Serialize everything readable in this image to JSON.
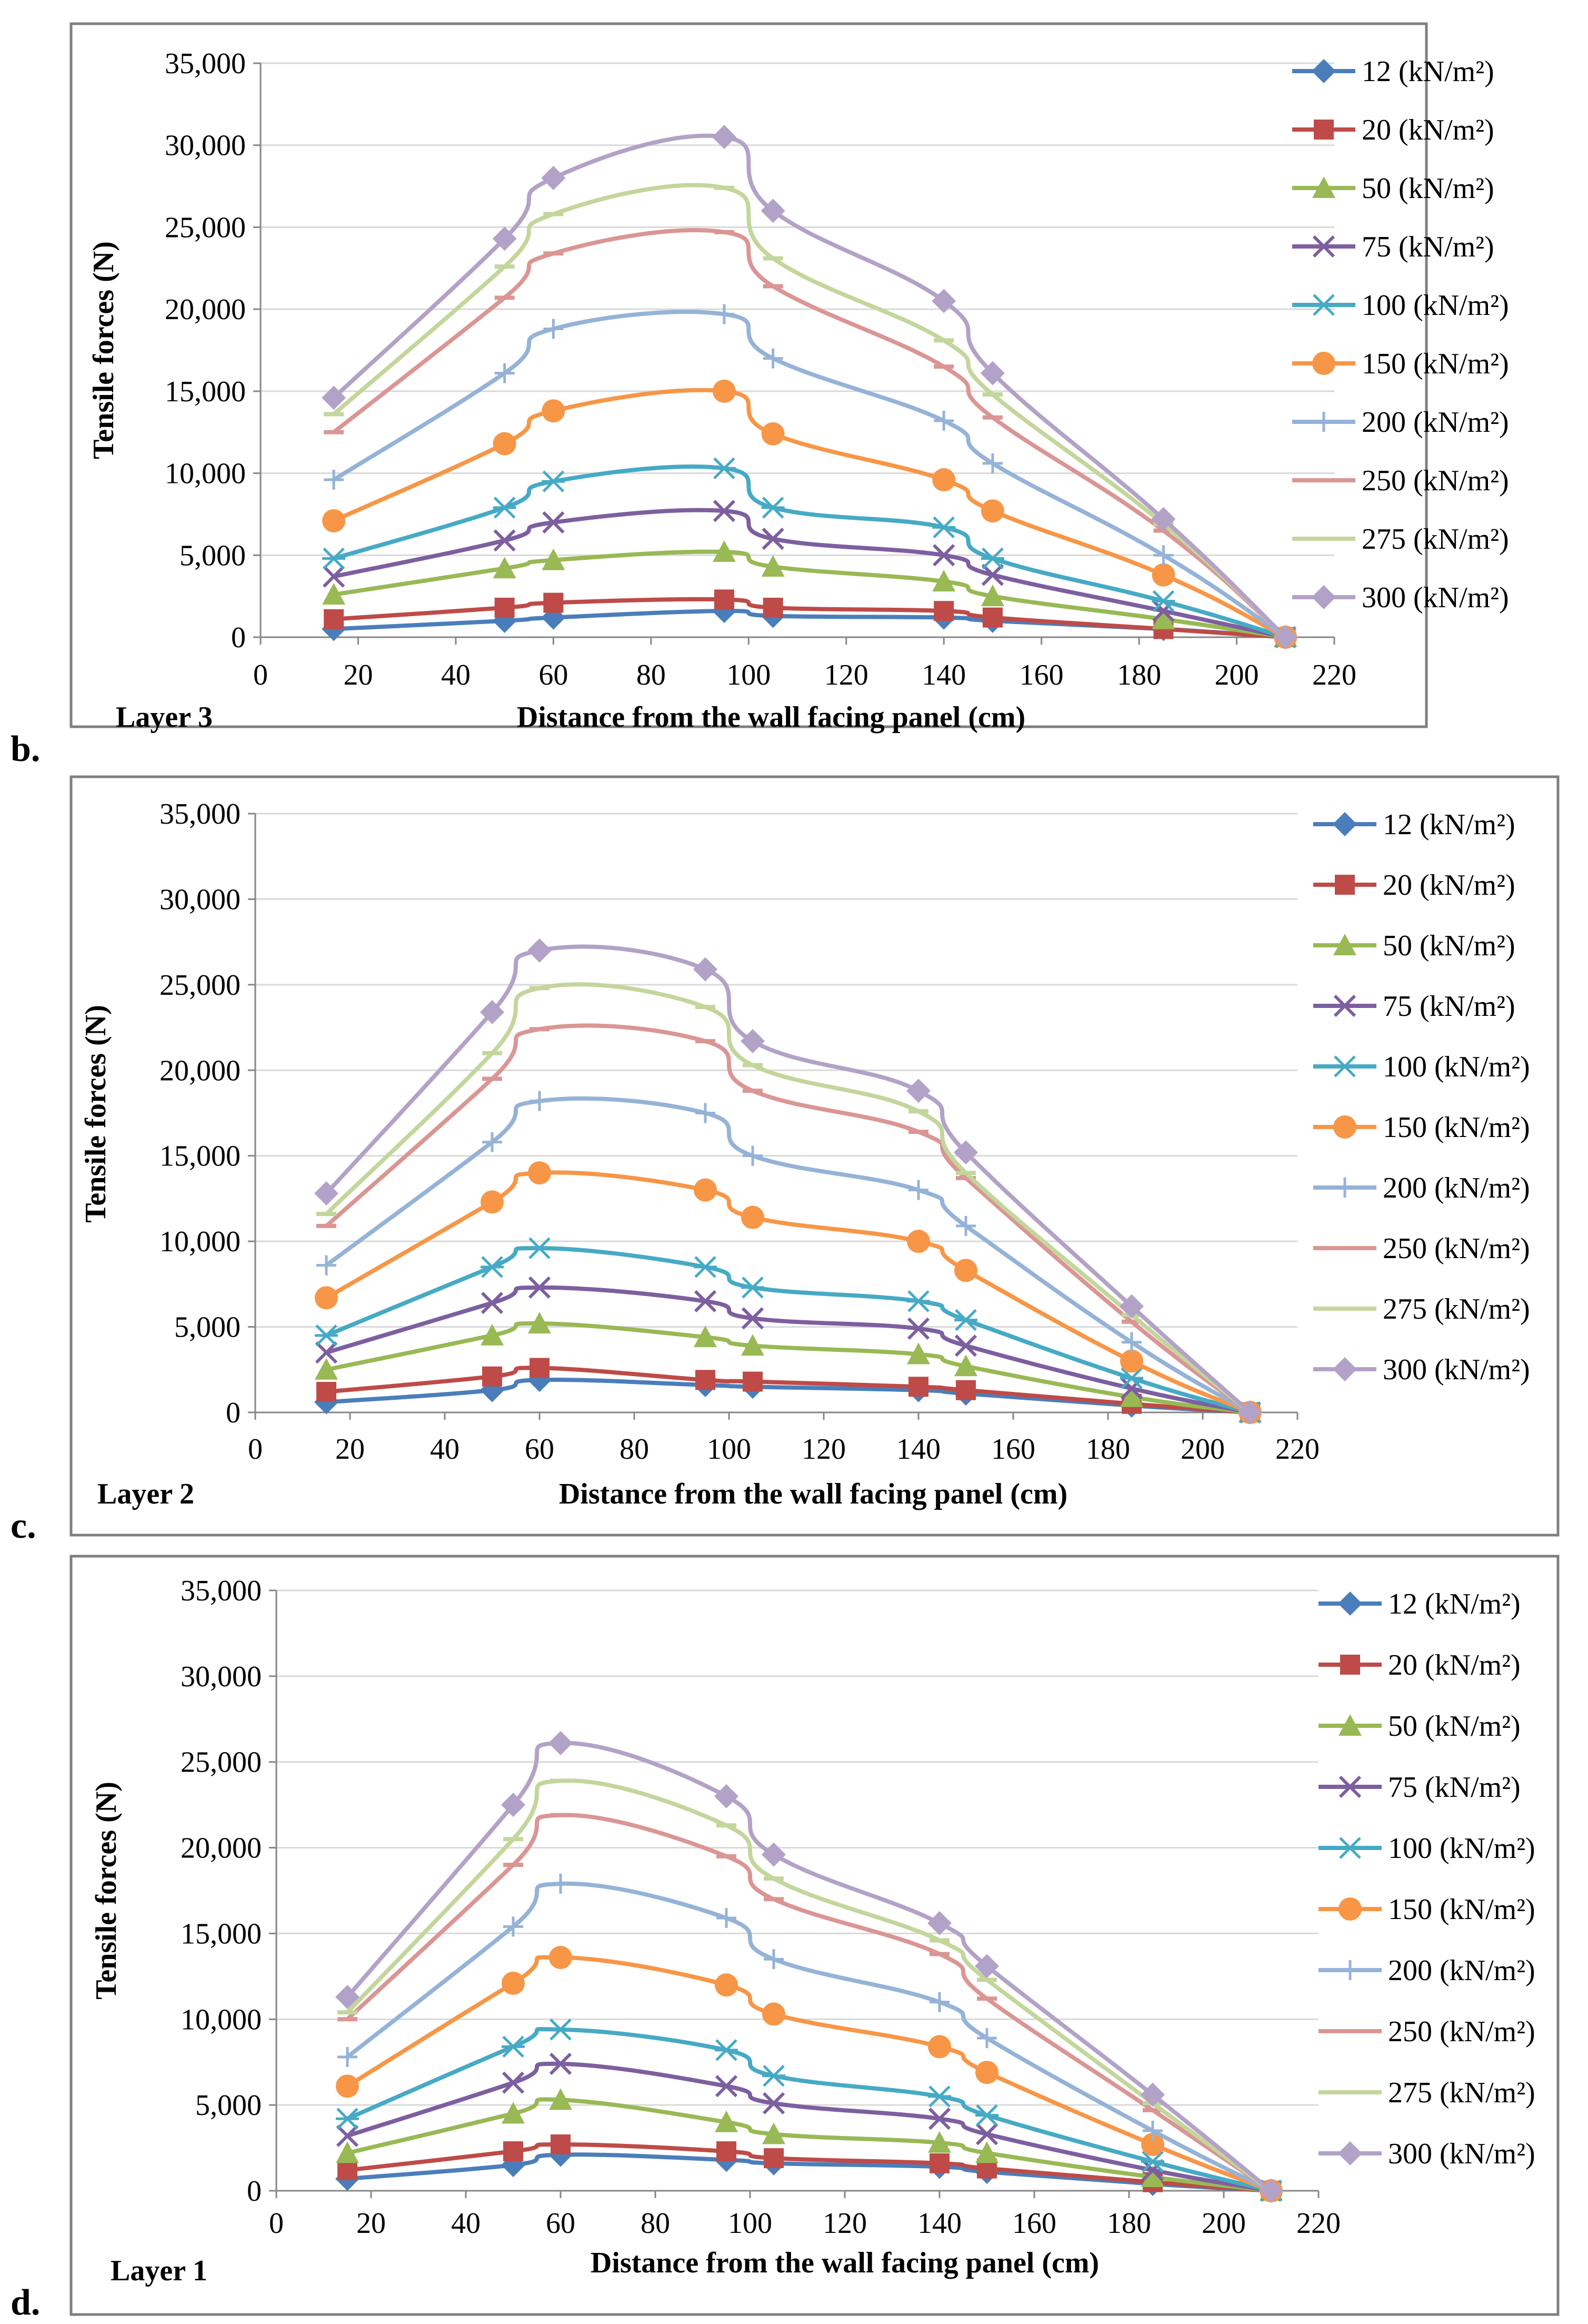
{
  "colors": {
    "12 (kN/m²)": "#4a7ebb",
    "20 (kN/m²)": "#be4b48",
    "50 (kN/m²)": "#98b954",
    "75 (kN/m²)": "#7d5fa0",
    "100 (kN/m²)": "#46aac5",
    "150 (kN/m²)": "#f79646",
    "200 (kN/m²)": "#95b3d7",
    "250 (kN/m²)": "#da9694",
    "275 (kN/m²)": "#c3d69b",
    "300 (kN/m²)": "#b3a2c7"
  },
  "markers": {
    "12 (kN/m²)": "diamond",
    "20 (kN/m²)": "square",
    "50 (kN/m²)": "triangle",
    "75 (kN/m²)": "x",
    "100 (kN/m²)": "star",
    "150 (kN/m²)": "circle",
    "200 (kN/m²)": "plus",
    "250 (kN/m²)": "dash",
    "275 (kN/m²)": "dash",
    "300 (kN/m²)": "diamond"
  },
  "chart_data": [
    {
      "type": "line",
      "panel_letter": "b.",
      "layer_label": "Layer 3",
      "xlabel": "Distance from the wall facing panel (cm)",
      "ylabel": "Tensile forces (N)",
      "xlim": [
        0,
        220
      ],
      "ylim": [
        0,
        35000
      ],
      "x_ticks": [
        "0",
        "20",
        "40",
        "60",
        "80",
        "100",
        "120",
        "140",
        "160",
        "180",
        "200",
        "220"
      ],
      "y_ticks": [
        "0",
        "5,000",
        "10,000",
        "15,000",
        "20,000",
        "25,000",
        "30,000",
        "35,000"
      ],
      "x": [
        15,
        50,
        60,
        95,
        105,
        140,
        150,
        185,
        210
      ],
      "series": [
        {
          "name": "12 (kN/m²)",
          "values": [
            500,
            1000,
            1200,
            1600,
            1300,
            1200,
            1000,
            500,
            0
          ]
        },
        {
          "name": "20 (kN/m²)",
          "values": [
            1100,
            1800,
            2100,
            2300,
            1800,
            1600,
            1200,
            500,
            0
          ]
        },
        {
          "name": "50 (kN/m²)",
          "values": [
            2600,
            4200,
            4700,
            5200,
            4300,
            3400,
            2500,
            1100,
            0
          ]
        },
        {
          "name": "75 (kN/m²)",
          "values": [
            3700,
            5900,
            7000,
            7700,
            6000,
            5000,
            3800,
            1600,
            0
          ]
        },
        {
          "name": "100 (kN/m²)",
          "values": [
            4800,
            7900,
            9500,
            10300,
            7900,
            6700,
            4800,
            2200,
            0
          ]
        },
        {
          "name": "150 (kN/m²)",
          "values": [
            7100,
            11800,
            13800,
            15000,
            12400,
            9600,
            7700,
            3800,
            0
          ]
        },
        {
          "name": "200 (kN/m²)",
          "values": [
            9600,
            16100,
            18800,
            19700,
            17000,
            13200,
            10600,
            5000,
            0
          ]
        },
        {
          "name": "250 (kN/m²)",
          "values": [
            12500,
            20700,
            23400,
            24700,
            21400,
            16500,
            13400,
            6500,
            0
          ]
        },
        {
          "name": "275 (kN/m²)",
          "values": [
            13600,
            22600,
            25800,
            27400,
            23100,
            18100,
            14800,
            6900,
            0
          ]
        },
        {
          "name": "300 (kN/m²)",
          "values": [
            14600,
            24300,
            28000,
            30500,
            26000,
            20500,
            16100,
            7200,
            0
          ]
        }
      ]
    },
    {
      "type": "line",
      "panel_letter": "c.",
      "layer_label": "Layer 2",
      "xlabel": "Distance from the wall facing panel (cm)",
      "ylabel": "Tensile forces (N)",
      "xlim": [
        0,
        220
      ],
      "ylim": [
        0,
        35000
      ],
      "x_ticks": [
        "0",
        "20",
        "40",
        "60",
        "80",
        "100",
        "120",
        "140",
        "160",
        "180",
        "200",
        "220"
      ],
      "y_ticks": [
        "0",
        "5,000",
        "10,000",
        "15,000",
        "20,000",
        "25,000",
        "30,000",
        "35,000"
      ],
      "x": [
        15,
        50,
        60,
        95,
        105,
        140,
        150,
        185,
        210
      ],
      "series": [
        {
          "name": "12 (kN/m²)",
          "values": [
            600,
            1300,
            1900,
            1600,
            1500,
            1300,
            1100,
            400,
            0
          ]
        },
        {
          "name": "20 (kN/m²)",
          "values": [
            1200,
            2100,
            2600,
            1900,
            1800,
            1500,
            1300,
            500,
            0
          ]
        },
        {
          "name": "50 (kN/m²)",
          "values": [
            2500,
            4500,
            5200,
            4400,
            3900,
            3400,
            2700,
            900,
            0
          ]
        },
        {
          "name": "75 (kN/m²)",
          "values": [
            3500,
            6400,
            7300,
            6500,
            5500,
            4900,
            3900,
            1400,
            0
          ]
        },
        {
          "name": "100 (kN/m²)",
          "values": [
            4500,
            8500,
            9600,
            8500,
            7300,
            6500,
            5400,
            2000,
            0
          ]
        },
        {
          "name": "150 (kN/m²)",
          "values": [
            6700,
            12300,
            14000,
            13000,
            11400,
            10000,
            8300,
            3000,
            0
          ]
        },
        {
          "name": "200 (kN/m²)",
          "values": [
            8600,
            15800,
            18200,
            17500,
            15000,
            13000,
            10900,
            4100,
            0
          ]
        },
        {
          "name": "250 (kN/m²)",
          "values": [
            10900,
            19500,
            22400,
            21700,
            18800,
            16400,
            13700,
            5300,
            0
          ]
        },
        {
          "name": "275 (kN/m²)",
          "values": [
            11600,
            21000,
            24800,
            23700,
            20300,
            17600,
            14000,
            5700,
            0
          ]
        },
        {
          "name": "300 (kN/m²)",
          "values": [
            12800,
            23400,
            27000,
            25900,
            21700,
            18800,
            15200,
            6200,
            0
          ]
        }
      ]
    },
    {
      "type": "line",
      "panel_letter": "d.",
      "layer_label": "Layer 1",
      "xlabel": "Distance from the wall facing panel (cm)",
      "ylabel": "Tensile forces (N)",
      "xlim": [
        0,
        220
      ],
      "ylim": [
        0,
        35000
      ],
      "x_ticks": [
        "0",
        "20",
        "40",
        "60",
        "80",
        "100",
        "120",
        "140",
        "160",
        "180",
        "200",
        "220"
      ],
      "y_ticks": [
        "0",
        "5,000",
        "10,000",
        "15,000",
        "20,000",
        "25,000",
        "30,000",
        "35,000"
      ],
      "x": [
        15,
        50,
        60,
        95,
        105,
        140,
        150,
        185,
        210
      ],
      "series": [
        {
          "name": "12 (kN/m²)",
          "values": [
            700,
            1500,
            2100,
            1800,
            1600,
            1400,
            1100,
            400,
            0
          ]
        },
        {
          "name": "20 (kN/m²)",
          "values": [
            1200,
            2300,
            2700,
            2300,
            1900,
            1600,
            1300,
            500,
            0
          ]
        },
        {
          "name": "50 (kN/m²)",
          "values": [
            2200,
            4500,
            5300,
            4000,
            3300,
            2800,
            2200,
            800,
            0
          ]
        },
        {
          "name": "75 (kN/m²)",
          "values": [
            3200,
            6300,
            7400,
            6100,
            5100,
            4200,
            3300,
            1200,
            0
          ]
        },
        {
          "name": "100 (kN/m²)",
          "values": [
            4200,
            8400,
            9400,
            8200,
            6700,
            5500,
            4400,
            1700,
            0
          ]
        },
        {
          "name": "150 (kN/m²)",
          "values": [
            6100,
            12100,
            13600,
            12000,
            10300,
            8400,
            6900,
            2700,
            0
          ]
        },
        {
          "name": "200 (kN/m²)",
          "values": [
            7800,
            15400,
            17900,
            15900,
            13500,
            11000,
            8900,
            3500,
            0
          ]
        },
        {
          "name": "250 (kN/m²)",
          "values": [
            10000,
            19000,
            21900,
            19500,
            17000,
            13800,
            11200,
            4700,
            0
          ]
        },
        {
          "name": "275 (kN/m²)",
          "values": [
            10400,
            20500,
            23900,
            21300,
            18200,
            14600,
            12300,
            5100,
            0
          ]
        },
        {
          "name": "300 (kN/m²)",
          "values": [
            11300,
            22500,
            26100,
            23000,
            19600,
            15600,
            13100,
            5600,
            0
          ]
        }
      ]
    }
  ]
}
